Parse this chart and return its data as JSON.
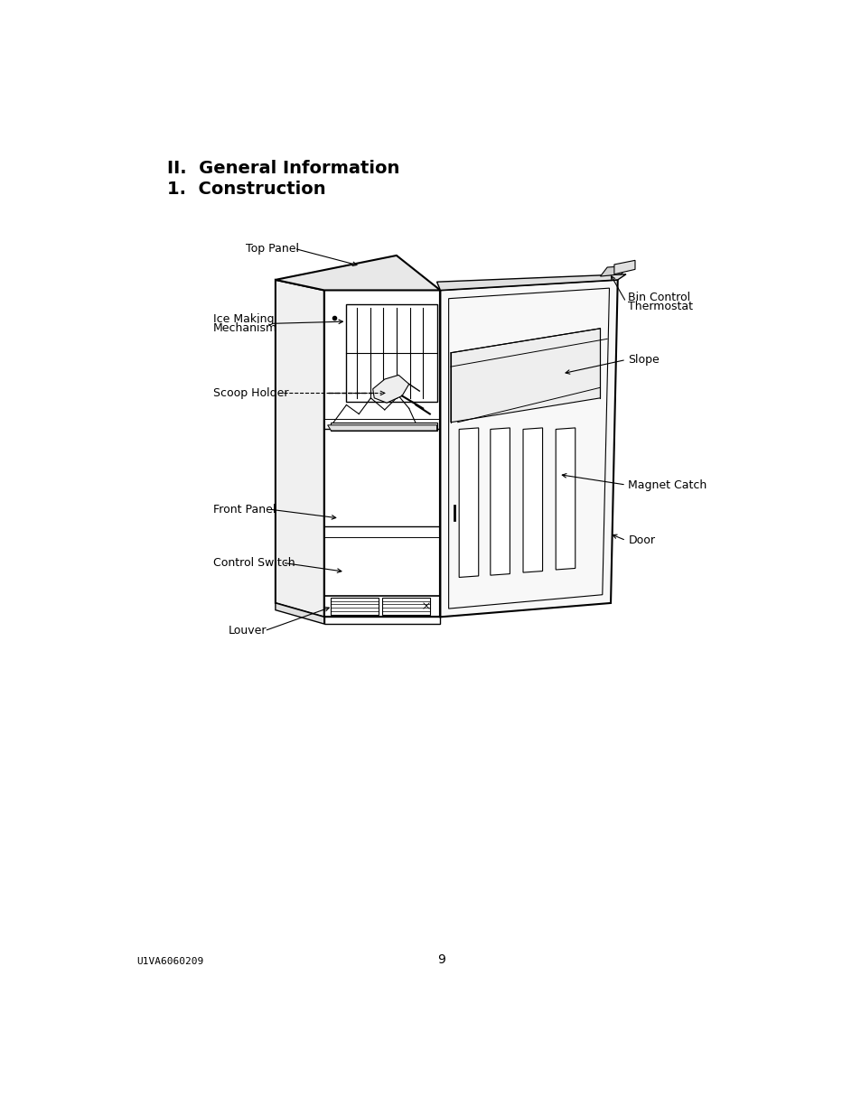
{
  "page_title1": "II.  General Information",
  "page_title2": "1.  Construction",
  "footer_left": "U1VA6060209",
  "footer_center": "9",
  "background_color": "#ffffff",
  "text_color": "#000000",
  "title1_fontsize": 14,
  "title2_fontsize": 14,
  "label_fontsize": 9,
  "footer_fontsize": 8
}
